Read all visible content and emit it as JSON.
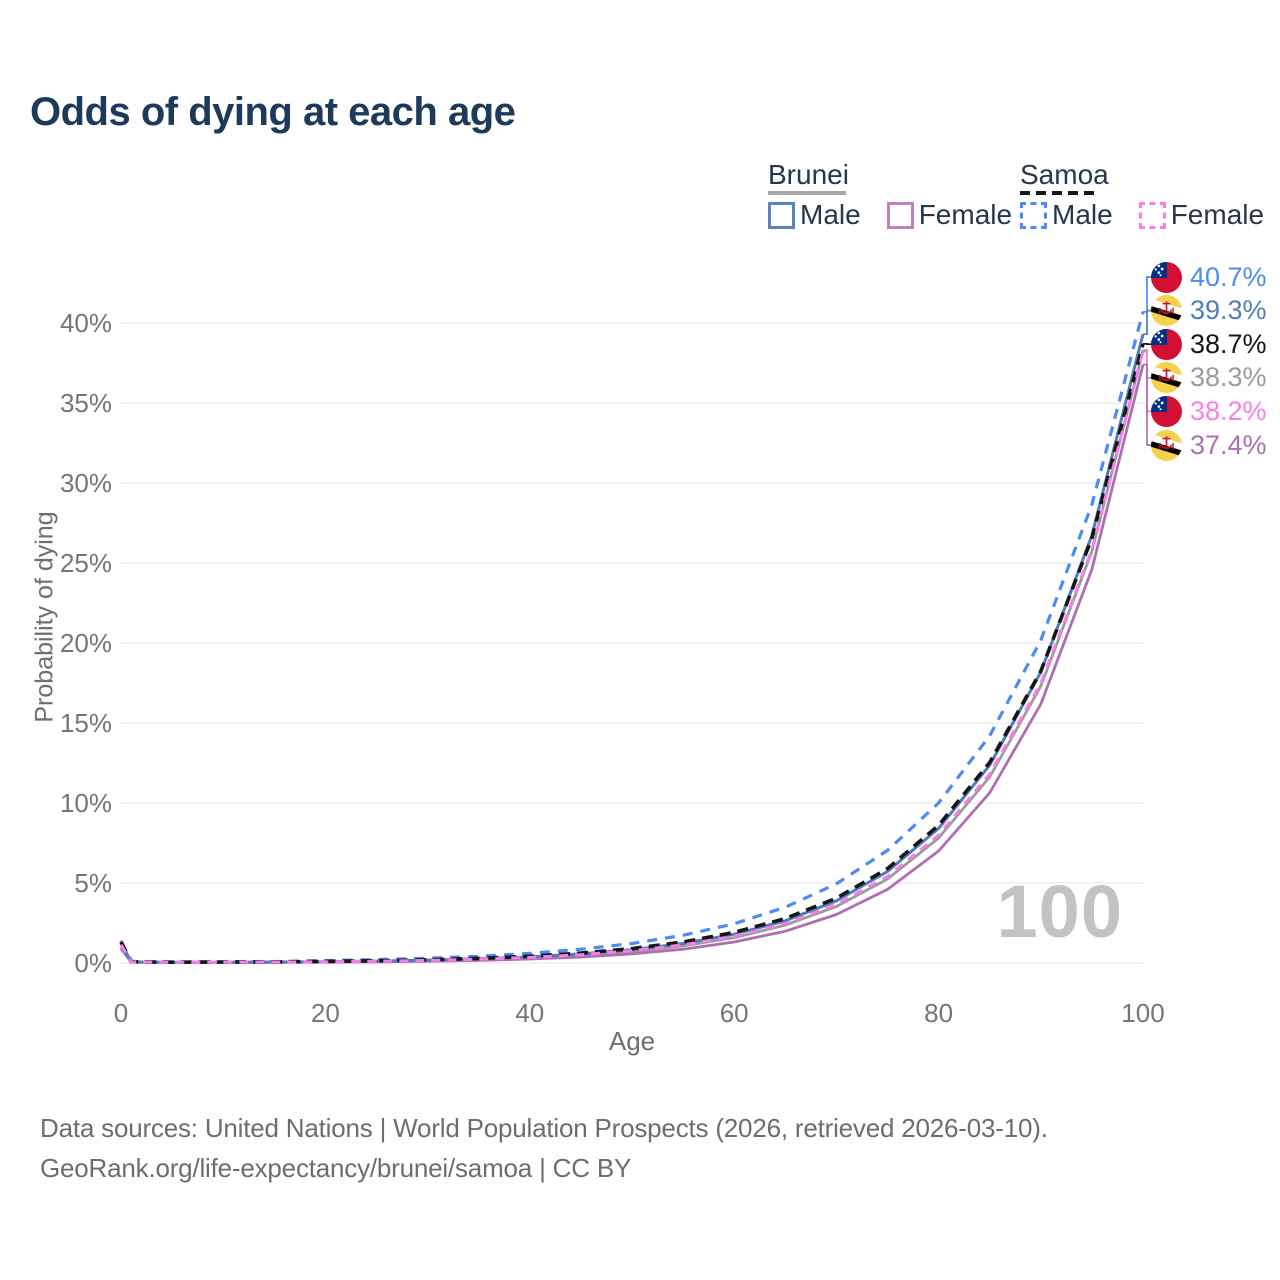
{
  "title": "Odds of dying at each age",
  "colors": {
    "title": "#1e3a5a",
    "axis_text": "#757575",
    "gridline": "#ededed",
    "watermark": "#c3c3c3",
    "footer_text": "#6d6d6d",
    "legend_text": "#26374c",
    "samoa_flag_red": "#d21034",
    "samoa_flag_blue": "#003087",
    "brunei_flag_yellow": "#f5d24b",
    "brunei_flag_red": "#cf1126"
  },
  "legend": {
    "groups": [
      {
        "country": "Brunei",
        "line_style": "solid",
        "underline_color": "#a8a8a8",
        "items": [
          {
            "label": "Male",
            "color": "#5b84b8"
          },
          {
            "label": "Female",
            "color": "#c17fbd"
          }
        ]
      },
      {
        "country": "Samoa",
        "line_style": "dashed",
        "underline_color": "#161616",
        "items": [
          {
            "label": "Male",
            "color": "#4c8bf5"
          },
          {
            "label": "Female",
            "color": "#f97ee6"
          }
        ]
      }
    ]
  },
  "axes": {
    "y_title": "Probability of dying",
    "x_title": "Age",
    "y_ticks": [
      "0%",
      "5%",
      "10%",
      "15%",
      "20%",
      "25%",
      "30%",
      "35%",
      "40%"
    ],
    "x_ticks": [
      "0",
      "20",
      "40",
      "60",
      "80",
      "100"
    ],
    "watermark": "100"
  },
  "chart_data": {
    "type": "line",
    "title": "Odds of dying at each age",
    "xlabel": "Age",
    "ylabel": "Probability of dying",
    "xlim": [
      0,
      100
    ],
    "ylim_percent": [
      0,
      43
    ],
    "x_tick_values": [
      0,
      20,
      40,
      60,
      80,
      100
    ],
    "y_tick_values_percent": [
      0,
      5,
      10,
      15,
      20,
      25,
      30,
      35,
      40
    ],
    "grid": "horizontal-only",
    "legend_position": "top-right",
    "ages": [
      0,
      1,
      2,
      5,
      10,
      15,
      20,
      25,
      30,
      35,
      40,
      45,
      50,
      55,
      60,
      65,
      70,
      75,
      80,
      85,
      90,
      95,
      100
    ],
    "series": [
      {
        "id": "brunei-total",
        "name": "Brunei",
        "country": "Brunei",
        "group": "Total",
        "color": "#9b9b9b",
        "dash": "",
        "width": 2.8,
        "flag": "brunei",
        "end_label": "38.3%",
        "end_value_percent": 38.3,
        "values": [
          1.0,
          0.07,
          0.05,
          0.04,
          0.04,
          0.05,
          0.07,
          0.1,
          0.15,
          0.22,
          0.33,
          0.48,
          0.72,
          1.07,
          1.59,
          2.37,
          3.53,
          5.25,
          7.81,
          11.63,
          17.3,
          25.74,
          38.3
        ]
      },
      {
        "id": "brunei-female",
        "name": "Brunei Female",
        "country": "Brunei",
        "group": "Female",
        "color": "#ae6fb2",
        "dash": "",
        "width": 2.8,
        "flag": "brunei",
        "end_label": "37.4%",
        "end_value_percent": 37.4,
        "values": [
          0.9,
          0.06,
          0.04,
          0.03,
          0.03,
          0.04,
          0.05,
          0.07,
          0.11,
          0.16,
          0.25,
          0.37,
          0.57,
          0.86,
          1.31,
          1.99,
          3.03,
          4.6,
          7.0,
          10.64,
          16.18,
          24.6,
          37.4
        ]
      },
      {
        "id": "brunei-male",
        "name": "Brunei Male",
        "country": "Brunei",
        "group": "Male",
        "color": "#4f7cba",
        "dash": "",
        "width": 3,
        "flag": "brunei",
        "end_label": "39.3%",
        "end_value_percent": 39.3,
        "values": [
          1.2,
          0.08,
          0.06,
          0.05,
          0.05,
          0.06,
          0.08,
          0.12,
          0.18,
          0.26,
          0.38,
          0.57,
          0.83,
          1.22,
          1.8,
          2.64,
          3.89,
          5.72,
          8.41,
          12.36,
          18.18,
          26.73,
          39.3
        ]
      },
      {
        "id": "samoa-male",
        "name": "Samoa Male",
        "country": "Samoa",
        "group": "Male",
        "color": "#4c8bf5",
        "dash": "10 8",
        "width": 3.2,
        "flag": "samoa",
        "end_label": "40.7%",
        "end_value_percent": 40.7,
        "values": [
          1.4,
          0.1,
          0.08,
          0.06,
          0.06,
          0.09,
          0.15,
          0.21,
          0.3,
          0.42,
          0.6,
          0.86,
          1.22,
          1.73,
          2.45,
          3.49,
          4.95,
          7.04,
          10.0,
          14.2,
          20.17,
          28.65,
          40.7
        ]
      },
      {
        "id": "samoa-total",
        "name": "Samoa",
        "country": "Samoa",
        "group": "Total",
        "color": "#161616",
        "dash": "11 7",
        "width": 3.6,
        "flag": "samoa",
        "end_label": "38.7%",
        "end_value_percent": 38.7,
        "values": [
          1.3,
          0.09,
          0.07,
          0.05,
          0.06,
          0.07,
          0.1,
          0.14,
          0.2,
          0.29,
          0.42,
          0.62,
          0.9,
          1.31,
          1.91,
          2.78,
          4.05,
          5.9,
          8.6,
          12.53,
          18.24,
          26.57,
          38.7
        ]
      },
      {
        "id": "samoa-female",
        "name": "Samoa Female",
        "country": "Samoa",
        "group": "Female",
        "color": "#f97ee6",
        "dash": "9 7",
        "width": 3,
        "flag": "samoa",
        "end_label": "38.2%",
        "end_value_percent": 38.2,
        "values": [
          1.15,
          0.08,
          0.06,
          0.04,
          0.05,
          0.06,
          0.07,
          0.11,
          0.16,
          0.24,
          0.35,
          0.52,
          0.77,
          1.13,
          1.67,
          2.47,
          3.66,
          5.41,
          8.0,
          11.82,
          17.48,
          25.84,
          38.2
        ]
      }
    ]
  },
  "footer": {
    "line1": "Data sources: United Nations | World Population Prospects (2026, retrieved 2026-03-10).",
    "line2": "GeoRank.org/life-expectancy/brunei/samoa | CC BY"
  }
}
